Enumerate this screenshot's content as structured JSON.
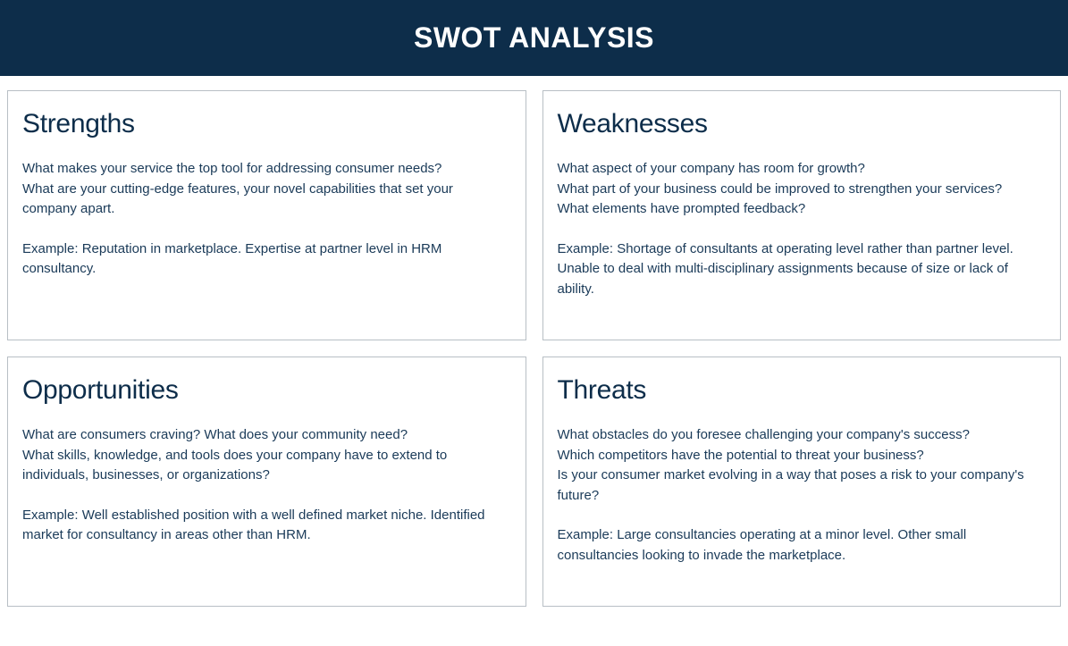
{
  "header": {
    "title": "SWOT ANALYSIS",
    "background_color": "#0d2d4a",
    "title_color": "#ffffff",
    "title_fontsize": 32,
    "title_fontweight": 700
  },
  "layout": {
    "type": "grid",
    "columns": 2,
    "rows": 2,
    "gap": 18,
    "card_border_color": "#b8bfc5",
    "card_min_height": 280,
    "card_title_fontsize": 30,
    "card_title_color": "#0d2d4a",
    "card_body_fontsize": 15,
    "card_body_color": "#1a3a58",
    "background_color": "#ffffff"
  },
  "cards": {
    "strengths": {
      "title": "Strengths",
      "questions": "What makes your service the top tool for addressing consumer needs?\nWhat are your cutting-edge features, your novel capabilities that set your company apart.",
      "example": "Example: Reputation in marketplace. Expertise at partner level in HRM consultancy."
    },
    "weaknesses": {
      "title": "Weaknesses",
      "questions": "What aspect of your company has room for growth?\nWhat part of your business could be improved to strengthen your services?\nWhat elements have prompted feedback?",
      "example": "Example: Shortage of consultants at operating level rather than partner level. Unable to deal with multi-disciplinary assignments because of size or lack of ability."
    },
    "opportunities": {
      "title": "Opportunities",
      "questions": "What are consumers craving? What does your community need?\nWhat skills, knowledge, and tools does your company have to extend to individuals, businesses, or organizations?",
      "example": "Example: Well established position with a well defined market niche. Identified market for consultancy in areas other than HRM."
    },
    "threats": {
      "title": "Threats",
      "questions": "What obstacles do you foresee challenging your company's success?\nWhich competitors have the potential to threat your business?\nIs your consumer market evolving in a way that poses a risk to your company's future?",
      "example": "Example: Large consultancies operating at a minor level. Other small consultancies looking to invade the marketplace."
    }
  }
}
